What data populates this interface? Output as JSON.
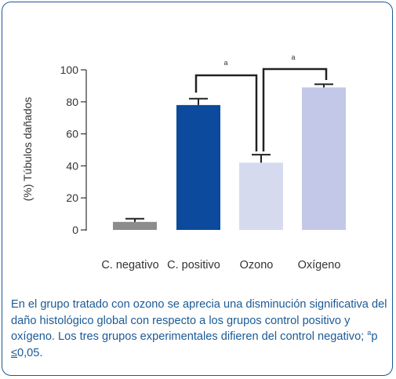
{
  "chart_data": {
    "type": "bar",
    "categories": [
      "C. negativo",
      "C. positivo",
      "Ozono",
      "Oxígeno"
    ],
    "values": [
      5,
      78,
      42,
      89
    ],
    "error_upper": [
      7,
      82,
      47,
      91
    ],
    "colors": [
      "#8c8c8e",
      "#0b4a9c",
      "#d6daef",
      "#c4c8e8"
    ],
    "ylabel": "(%) Túbulos dañados",
    "ylim": [
      0,
      100
    ],
    "yticks": [
      0,
      20,
      40,
      60,
      80,
      100
    ],
    "grid": false,
    "significance": [
      {
        "from": "C. positivo",
        "to": "Ozono",
        "label": "a"
      },
      {
        "from": "Ozono",
        "to": "Oxígeno",
        "label": "a"
      }
    ]
  },
  "caption": {
    "text_before": "En el grupo tratado con ozono se aprecia una disminución significativa del daño histológico global con respecto a los grupos control positivo y oxígeno. Los tres grupos experimentales difieren del control negativo; ",
    "superscript": "a",
    "text_p": "p ",
    "le_symbol": "≤",
    "text_after": "0,05."
  }
}
